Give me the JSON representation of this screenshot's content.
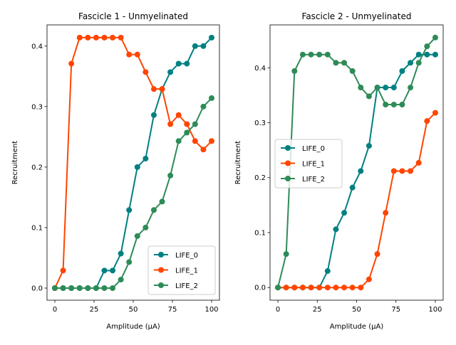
{
  "chart_data": [
    {
      "type": "line",
      "title": "Fascicle 1 - Unmyelinated",
      "xlabel": "Amplitude (μA)",
      "ylabel": "Recruitment",
      "xlim": [
        -5,
        105
      ],
      "ylim": [
        -0.02,
        0.435
      ],
      "xticks": [
        0,
        25,
        50,
        75,
        100
      ],
      "xtick_labels": [
        "0",
        "25",
        "50",
        "75",
        "100"
      ],
      "yticks": [
        0.0,
        0.1,
        0.2,
        0.3,
        0.4
      ],
      "ytick_labels": [
        "0.0",
        "0.1",
        "0.2",
        "0.3",
        "0.4"
      ],
      "grid": false,
      "legend_position": "lower-right",
      "x": [
        0,
        5.26,
        10.53,
        15.79,
        21.05,
        26.32,
        31.58,
        36.84,
        42.11,
        47.37,
        52.63,
        57.89,
        63.16,
        68.42,
        73.68,
        78.95,
        84.21,
        89.47,
        94.74,
        100
      ],
      "series": [
        {
          "name": "LIFE_0",
          "color": "#008080",
          "values": [
            0,
            0,
            0,
            0,
            0,
            0,
            0.029,
            0.029,
            0.057,
            0.129,
            0.2,
            0.214,
            0.286,
            0.329,
            0.357,
            0.371,
            0.371,
            0.4,
            0.4,
            0.414
          ]
        },
        {
          "name": "LIFE_1",
          "color": "#ff4500",
          "values": [
            0,
            0.029,
            0.371,
            0.414,
            0.414,
            0.414,
            0.414,
            0.414,
            0.414,
            0.386,
            0.386,
            0.357,
            0.329,
            0.329,
            0.271,
            0.286,
            0.271,
            0.243,
            0.229,
            0.243
          ]
        },
        {
          "name": "LIFE_2",
          "color": "#2e8b57",
          "values": [
            0,
            0,
            0,
            0,
            0,
            0,
            0,
            0,
            0.014,
            0.043,
            0.086,
            0.1,
            0.129,
            0.143,
            0.186,
            0.243,
            0.257,
            0.271,
            0.3,
            0.314
          ]
        }
      ]
    },
    {
      "type": "line",
      "title": "Fascicle 2 - Unmyelinated",
      "xlabel": "Amplitude (μA)",
      "ylabel": "Recruitment",
      "xlim": [
        -5,
        105
      ],
      "ylim": [
        -0.023,
        0.478
      ],
      "xticks": [
        0,
        25,
        50,
        75,
        100
      ],
      "xtick_labels": [
        "0",
        "25",
        "50",
        "75",
        "100"
      ],
      "yticks": [
        0.0,
        0.1,
        0.2,
        0.3,
        0.4
      ],
      "ytick_labels": [
        "0.0",
        "0.1",
        "0.2",
        "0.3",
        "0.4"
      ],
      "grid": false,
      "legend_position": "center-left",
      "x": [
        0,
        5.26,
        10.53,
        15.79,
        21.05,
        26.32,
        31.58,
        36.84,
        42.11,
        47.37,
        52.63,
        57.89,
        63.16,
        68.42,
        73.68,
        78.95,
        84.21,
        89.47,
        94.74,
        100
      ],
      "series": [
        {
          "name": "LIFE_0",
          "color": "#008080",
          "values": [
            0,
            0,
            0,
            0,
            0,
            0,
            0.03,
            0.106,
            0.136,
            0.182,
            0.212,
            0.258,
            0.364,
            0.364,
            0.364,
            0.394,
            0.409,
            0.424,
            0.424,
            0.424
          ]
        },
        {
          "name": "LIFE_1",
          "color": "#ff4500",
          "values": [
            0,
            0,
            0,
            0,
            0,
            0,
            0,
            0,
            0,
            0,
            0,
            0.015,
            0.061,
            0.136,
            0.212,
            0.212,
            0.212,
            0.227,
            0.303,
            0.318
          ]
        },
        {
          "name": "LIFE_2",
          "color": "#2e8b57",
          "values": [
            0,
            0.061,
            0.394,
            0.424,
            0.424,
            0.424,
            0.424,
            0.409,
            0.409,
            0.394,
            0.364,
            0.348,
            0.364,
            0.333,
            0.333,
            0.333,
            0.364,
            0.409,
            0.439,
            0.455
          ]
        }
      ]
    }
  ]
}
